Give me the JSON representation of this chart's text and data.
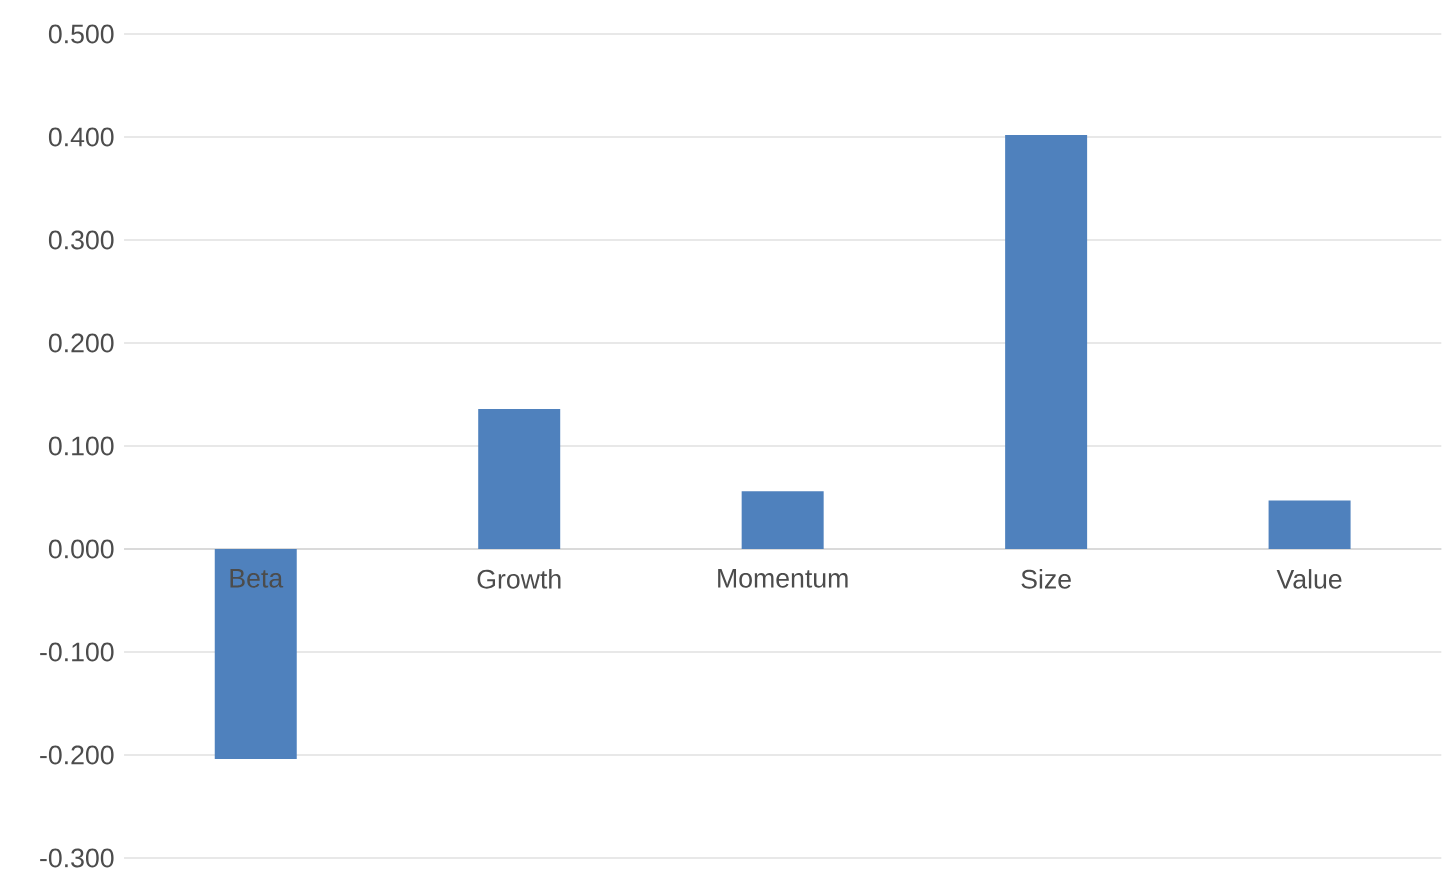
{
  "chart_data": {
    "type": "bar",
    "categories": [
      "Beta",
      "Growth",
      "Momentum",
      "Size",
      "Value"
    ],
    "values": [
      -0.204,
      0.136,
      0.056,
      0.402,
      0.047
    ],
    "color": "#4f81bd",
    "ylim": [
      -0.3,
      0.5
    ],
    "yticks": [
      {
        "value": -0.3,
        "label": "-0.300"
      },
      {
        "value": -0.2,
        "label": "-0.200"
      },
      {
        "value": -0.1,
        "label": "-0.100"
      },
      {
        "value": 0,
        "label": "0.000"
      },
      {
        "value": 0.1,
        "label": "0.100"
      },
      {
        "value": 0.2,
        "label": "0.200"
      },
      {
        "value": 0.3,
        "label": "0.300"
      },
      {
        "value": 0.4,
        "label": "0.400"
      },
      {
        "value": 0.5,
        "label": "0.500"
      }
    ],
    "grid": "y"
  }
}
